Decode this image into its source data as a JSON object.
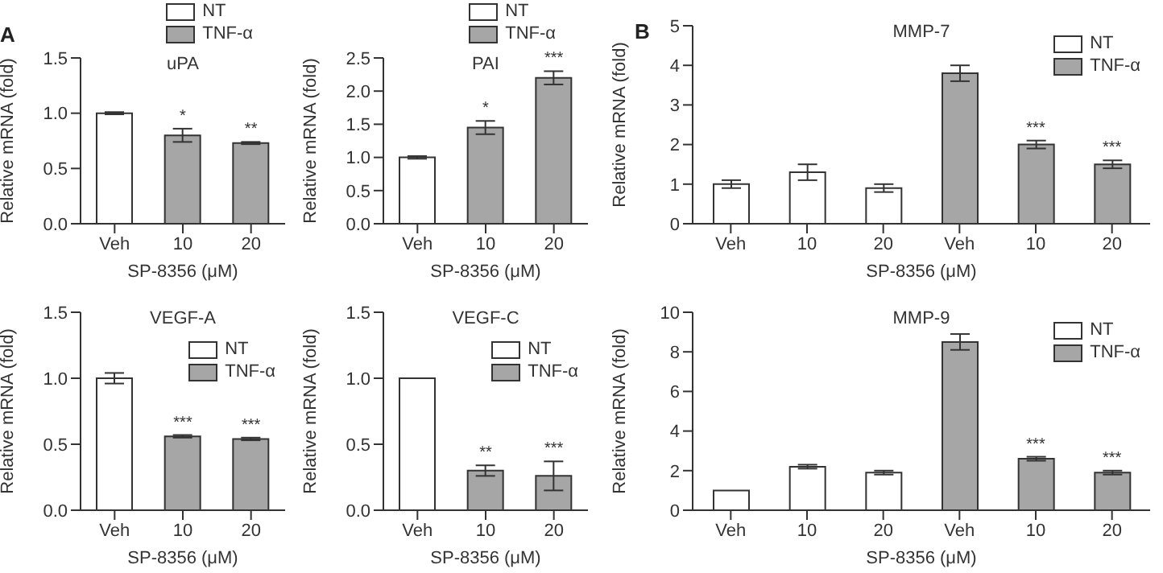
{
  "chart_data": [
    {
      "type": "bar",
      "title": "uPA",
      "xlabel": "SP-8356 (μM)",
      "ylabel": "Relative mRNA (fold)",
      "categories": [
        "Veh",
        "10",
        "20"
      ],
      "stacked": true,
      "legend": "top",
      "annotations": [
        "A",
        {
          "text": "*",
          "x": "10",
          "y": 0.86
        },
        {
          "text": "**",
          "x": "20",
          "y": 0.74
        }
      ],
      "ylim": [
        0,
        1.5
      ],
      "yticks": [
        {
          "value": 0,
          "label": "0.0"
        },
        {
          "value": 0.5,
          "label": "0.5"
        },
        {
          "value": 1,
          "label": "1.0"
        },
        {
          "value": 1.5,
          "label": "1.5"
        }
      ],
      "series": [
        {
          "name": "NT",
          "color": "#ffffff",
          "values": [
            1.0,
            null,
            null
          ],
          "errors": [
            0.01,
            null,
            null
          ]
        },
        {
          "name": "TNF-α",
          "color": "#a6a6a6",
          "values": [
            null,
            0.8,
            0.73
          ],
          "errors": [
            null,
            0.06,
            0.01
          ]
        }
      ]
    },
    {
      "type": "bar",
      "title": "PAI",
      "xlabel": "SP-8356 (μM)",
      "ylabel": "Relative mRNA (fold)",
      "categories": [
        "Veh",
        "10",
        "20"
      ],
      "stacked": true,
      "legend": "top",
      "annotations": [
        {
          "text": "*",
          "x": "10",
          "y": 1.55
        },
        {
          "text": "***",
          "x": "20",
          "y": 2.3
        }
      ],
      "ylim": [
        0,
        2.5
      ],
      "yticks": [
        {
          "value": 0,
          "label": "0.0"
        },
        {
          "value": 0.5,
          "label": "0.5"
        },
        {
          "value": 1,
          "label": "1.0"
        },
        {
          "value": 1.5,
          "label": "1.5"
        },
        {
          "value": 2,
          "label": "2.0"
        },
        {
          "value": 2.5,
          "label": "2.5"
        }
      ],
      "series": [
        {
          "name": "NT",
          "color": "#ffffff",
          "values": [
            1.0,
            null,
            null
          ],
          "errors": [
            0.02,
            null,
            null
          ]
        },
        {
          "name": "TNF-α",
          "color": "#a6a6a6",
          "values": [
            null,
            1.45,
            2.2
          ],
          "errors": [
            null,
            0.1,
            0.1
          ]
        }
      ]
    },
    {
      "type": "bar",
      "title": "VEGF-A",
      "xlabel": "SP-8356 (μM)",
      "ylabel": "Relative mRNA (fold)",
      "categories": [
        "Veh",
        "10",
        "20"
      ],
      "stacked": true,
      "legend": "top right",
      "annotations": [
        {
          "text": "***",
          "x": "10",
          "y": 0.57
        },
        {
          "text": "***",
          "x": "20",
          "y": 0.55
        }
      ],
      "ylim": [
        0,
        1.5
      ],
      "yticks": [
        {
          "value": 0,
          "label": "0.0"
        },
        {
          "value": 0.5,
          "label": "0.5"
        },
        {
          "value": 1,
          "label": "1.0"
        },
        {
          "value": 1.5,
          "label": "1.5"
        }
      ],
      "series": [
        {
          "name": "NT",
          "color": "#ffffff",
          "values": [
            1.0,
            null,
            null
          ],
          "errors": [
            0.04,
            null,
            null
          ]
        },
        {
          "name": "TNF-α",
          "color": "#a6a6a6",
          "values": [
            null,
            0.56,
            0.54
          ],
          "errors": [
            null,
            0.01,
            0.01
          ]
        }
      ]
    },
    {
      "type": "bar",
      "title": "VEGF-C",
      "xlabel": "SP-8356 (μM)",
      "ylabel": "Relative mRNA (fold)",
      "categories": [
        "Veh",
        "10",
        "20"
      ],
      "stacked": true,
      "legend": "top right",
      "annotations": [
        {
          "text": "**",
          "x": "10",
          "y": 0.34
        },
        {
          "text": "***",
          "x": "20",
          "y": 0.37
        }
      ],
      "ylim": [
        0,
        1.5
      ],
      "yticks": [
        {
          "value": 0,
          "label": "0.0"
        },
        {
          "value": 0.5,
          "label": "0.5"
        },
        {
          "value": 1,
          "label": "1.0"
        },
        {
          "value": 1.5,
          "label": "1.5"
        }
      ],
      "series": [
        {
          "name": "NT",
          "color": "#ffffff",
          "values": [
            1.0,
            null,
            null
          ]
        },
        {
          "name": "TNF-α",
          "color": "#a6a6a6",
          "values": [
            null,
            0.3,
            0.26
          ],
          "errors": [
            null,
            0.04,
            0.11
          ]
        }
      ]
    },
    {
      "type": "bar",
      "title": "MMP-7",
      "xlabel": "SP-8356 (μM)",
      "ylabel": "Relative mRNA (fold)",
      "categories": [
        "Veh",
        "10",
        "20",
        "Veh",
        "10",
        "20"
      ],
      "stacked": true,
      "legend": "top right",
      "annotations": [
        "B",
        "***",
        "***"
      ],
      "ylim": [
        0,
        5
      ],
      "yticks": [
        0,
        1,
        2,
        3,
        4,
        5
      ],
      "series": [
        {
          "name": "NT",
          "color": "#ffffff",
          "values": [
            1.0,
            1.3,
            0.9,
            null,
            null,
            null
          ],
          "errors": [
            0.1,
            0.2,
            0.1,
            null,
            null,
            null
          ]
        },
        {
          "name": "TNF-α",
          "color": "#a6a6a6",
          "values": [
            null,
            null,
            null,
            3.8,
            2.0,
            1.5
          ],
          "errors": [
            null,
            null,
            null,
            0.2,
            0.1,
            0.1
          ]
        }
      ]
    },
    {
      "type": "bar",
      "title": "MMP-9",
      "xlabel": "SP-8356 (μM)",
      "ylabel": "Relative mRNA (fold)",
      "categories": [
        "Veh",
        "10",
        "20",
        "Veh",
        "10",
        "20"
      ],
      "stacked": true,
      "legend": "top right",
      "annotations": [
        "***",
        "***"
      ],
      "ylim": [
        0,
        10
      ],
      "yticks": [
        0,
        2,
        4,
        6,
        8,
        10
      ],
      "series": [
        {
          "name": "NT",
          "color": "#ffffff",
          "values": [
            1.0,
            2.2,
            1.9,
            null,
            null,
            null
          ],
          "errors": [
            null,
            0.1,
            0.1,
            null,
            null,
            null
          ]
        },
        {
          "name": "TNF-α",
          "color": "#a6a6a6",
          "values": [
            null,
            null,
            null,
            8.5,
            2.6,
            1.9
          ],
          "errors": [
            null,
            null,
            null,
            0.4,
            0.1,
            0.1
          ]
        }
      ]
    }
  ]
}
